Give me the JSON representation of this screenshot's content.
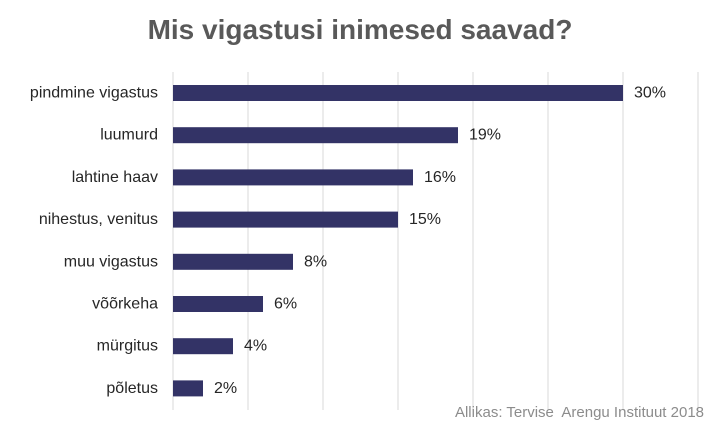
{
  "chart_data": {
    "type": "bar",
    "orientation": "horizontal",
    "title": "Mis vigastusi inimesed saavad?",
    "categories": [
      "pindmine vigastus",
      "luumurd",
      "lahtine haav",
      "nihestus, venitus",
      "muu vigastus",
      "võõrkeha",
      "mürgitus",
      "põletus"
    ],
    "values": [
      30,
      19,
      16,
      15,
      8,
      6,
      4,
      2
    ],
    "value_labels": [
      "30%",
      "19%",
      "16%",
      "15%",
      "8%",
      "6%",
      "4%",
      "2%"
    ],
    "xlim": [
      0,
      35
    ],
    "grid": true,
    "bar_color": "#333366",
    "source": "Allikas: Tervise  Arengu Instituut 2018"
  }
}
